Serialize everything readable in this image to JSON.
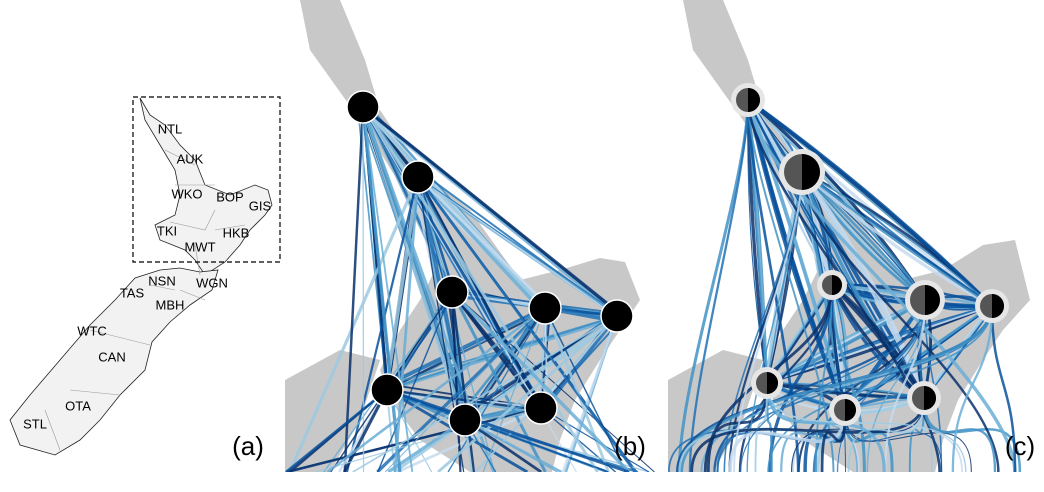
{
  "panels": [
    {
      "label": "(a)",
      "regions": [
        "NTL",
        "AUK",
        "WKO",
        "BOP",
        "GIS",
        "TKI",
        "HKB",
        "MWT",
        "NSN",
        "WGN",
        "TAS",
        "MBH",
        "WTC",
        "CAN",
        "OTA",
        "STL"
      ]
    },
    {
      "label": "(b)"
    },
    {
      "label": "(c)"
    }
  ]
}
